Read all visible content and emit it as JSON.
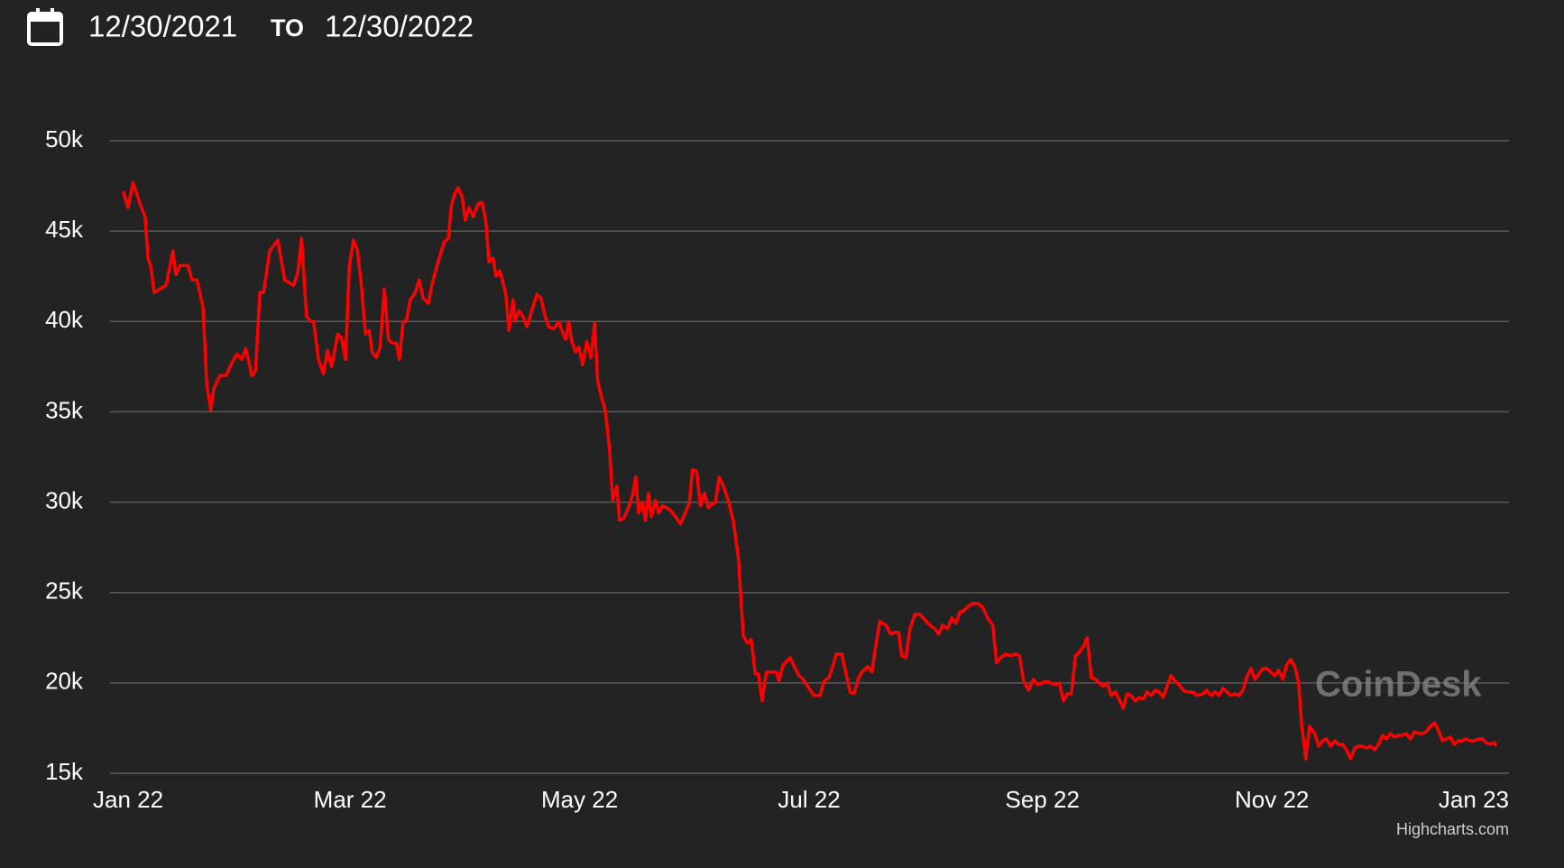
{
  "header": {
    "date_from": "12/30/2021",
    "to": "TO",
    "date_to": "12/30/2022"
  },
  "chart_data": {
    "type": "line",
    "watermark": "CoinDesk",
    "credits": "Highcharts.com",
    "xlim": [
      -4.8,
      367
    ],
    "ylim": [
      15000,
      50000
    ],
    "grid": true,
    "xticks": [
      {
        "value": 0,
        "label": "Jan 22"
      },
      {
        "value": 59,
        "label": "Mar 22"
      },
      {
        "value": 120,
        "label": "May 22"
      },
      {
        "value": 181,
        "label": "Jul 22"
      },
      {
        "value": 243,
        "label": "Sep 22"
      },
      {
        "value": 304,
        "label": "Nov 22"
      },
      {
        "value": 365,
        "label": "Jan 23"
      }
    ],
    "yticks": [
      {
        "value": 15000,
        "label": "15k"
      },
      {
        "value": 20000,
        "label": "20k"
      },
      {
        "value": 25000,
        "label": "25k"
      },
      {
        "value": 30000,
        "label": "30k"
      },
      {
        "value": 35000,
        "label": "35k"
      },
      {
        "value": 40000,
        "label": "40k"
      },
      {
        "value": 45000,
        "label": "45k"
      },
      {
        "value": 50000,
        "label": "50k"
      }
    ],
    "x": [
      -1.3,
      0,
      1.3,
      3.2,
      4.5,
      5.3,
      6.1,
      6.9,
      8.5,
      10.1,
      11.9,
      12.7,
      13.8,
      15.9,
      17.0,
      18.3,
      19.9,
      20.9,
      22.0,
      22.8,
      24.4,
      26.0,
      27.6,
      28.9,
      30.2,
      31.3,
      32.9,
      33.9,
      35.0,
      36.0,
      37.6,
      39.8,
      41.6,
      44.0,
      45.1,
      46.1,
      47.4,
      48.5,
      49.3,
      50.6,
      51.9,
      53.0,
      54.1,
      55.7,
      56.7,
      57.8,
      58.8,
      59.9,
      60.9,
      62.0,
      63.1,
      64.1,
      64.9,
      66.0,
      67.0,
      68.1,
      69.2,
      70.2,
      71.3,
      72.1,
      73.1,
      73.9,
      75.0,
      76.1,
      77.4,
      78.4,
      79.8,
      80.8,
      82.4,
      84.0,
      85.1,
      85.9,
      86.7,
      87.7,
      88.8,
      89.6,
      90.6,
      91.7,
      93.0,
      94.1,
      95.1,
      95.9,
      97.0,
      97.8,
      98.8,
      99.6,
      100.4,
      101.2,
      102.3,
      102.8,
      103.9,
      104.9,
      106.0,
      107.3,
      108.6,
      109.7,
      110.8,
      111.8,
      113.2,
      114.5,
      115.3,
      116.3,
      117.1,
      117.9,
      119.0,
      119.8,
      120.8,
      121.9,
      123.0,
      124.0,
      124.8,
      125.6,
      126.9,
      128.0,
      128.8,
      129.9,
      130.6,
      131.7,
      133.0,
      134.1,
      134.9,
      135.7,
      136.7,
      137.5,
      138.3,
      139.1,
      140.2,
      141.0,
      142.0,
      143.1,
      144.4,
      145.8,
      146.8,
      148.1,
      149.2,
      150.0,
      151.1,
      152.1,
      153.2,
      154.2,
      155.3,
      156.1,
      157.1,
      158.2,
      159.5,
      160.9,
      162.2,
      163.5,
      164.6,
      165.6,
      166.7,
      167.5,
      168.5,
      169.6,
      171.2,
      172.3,
      173.0,
      174.1,
      176.0,
      177.3,
      178.3,
      179.4,
      180.7,
      182.3,
      183.9,
      185.0,
      186.3,
      187.1,
      188.2,
      189.7,
      190.8,
      191.9,
      192.9,
      194.0,
      195.0,
      196.6,
      197.7,
      198.8,
      199.8,
      201.4,
      202.7,
      203.8,
      204.8,
      205.6,
      206.7,
      207.8,
      209.1,
      210.4,
      211.7,
      213.1,
      214.4,
      215.4,
      216.5,
      217.8,
      218.9,
      220.0,
      221.0,
      222.1,
      223.1,
      224.5,
      225.8,
      227.1,
      228.4,
      229.8,
      230.8,
      231.9,
      233.2,
      234.5,
      235.9,
      236.9,
      238.0,
      239.3,
      240.6,
      241.7,
      243.0,
      244.1,
      245.1,
      246.5,
      247.5,
      248.6,
      249.6,
      250.7,
      251.8,
      252.8,
      253.9,
      254.9,
      256.0,
      257.1,
      258.1,
      259.2,
      260.2,
      261.3,
      262.4,
      263.4,
      264.5,
      265.5,
      266.6,
      267.7,
      268.7,
      269.8,
      270.8,
      271.9,
      273.0,
      274.0,
      275.1,
      276.1,
      277.2,
      278.3,
      279.3,
      280.4,
      281.4,
      283.0,
      284.1,
      285.7,
      286.7,
      287.8,
      288.9,
      289.9,
      291.0,
      292.0,
      293.1,
      294.2,
      295.2,
      296.3,
      297.3,
      298.4,
      299.5,
      300.5,
      301.6,
      302.6,
      303.7,
      304.8,
      305.8,
      306.9,
      307.9,
      309.0,
      310.1,
      311.1,
      311.9,
      313.0,
      314.0,
      315.4,
      316.4,
      317.5,
      318.5,
      319.6,
      320.7,
      321.7,
      322.8,
      323.8,
      324.9,
      326.0,
      327.0,
      328.1,
      329.1,
      330.2,
      331.3,
      332.3,
      333.4,
      334.4,
      335.5,
      336.6,
      337.6,
      338.7,
      339.7,
      340.8,
      341.9,
      342.9,
      344.0,
      345.0,
      346.1,
      347.2,
      348.2,
      349.3,
      350.3,
      351.4,
      352.5,
      353.5,
      354.6,
      355.6,
      356.7,
      357.8,
      358.8,
      359.9,
      360.9,
      362.0,
      363.1,
      363.6
    ],
    "series": [
      {
        "color": "#ff0000",
        "values": [
          47200,
          46300,
          47700,
          46500,
          45800,
          43500,
          43000,
          41600,
          41800,
          42000,
          43900,
          42600,
          43100,
          43100,
          42300,
          42300,
          40800,
          36500,
          35100,
          36300,
          37000,
          37000,
          37700,
          38200,
          37900,
          38500,
          37000,
          37300,
          41600,
          41600,
          43900,
          44500,
          42300,
          42000,
          42700,
          44600,
          40300,
          40000,
          40000,
          37900,
          37100,
          38400,
          37500,
          39300,
          39100,
          37900,
          43100,
          44500,
          44000,
          42000,
          39300,
          39500,
          38300,
          38000,
          38600,
          41800,
          39000,
          38800,
          38800,
          37900,
          40000,
          40000,
          41200,
          41500,
          42300,
          41300,
          41000,
          42100,
          43300,
          44400,
          44600,
          46400,
          47000,
          47400,
          46900,
          45600,
          46300,
          45800,
          46500,
          46600,
          45500,
          43300,
          43500,
          42500,
          42800,
          42200,
          41500,
          39500,
          41200,
          40000,
          40600,
          40300,
          39700,
          40600,
          41500,
          41300,
          40300,
          39700,
          39600,
          40000,
          39500,
          39000,
          40000,
          38900,
          38300,
          38600,
          37600,
          38900,
          38000,
          39900,
          36700,
          36000,
          35000,
          32800,
          30100,
          30900,
          29000,
          29100,
          29700,
          30400,
          31400,
          29400,
          30000,
          29000,
          30500,
          29200,
          30100,
          29400,
          29800,
          29700,
          29500,
          29100,
          28800,
          29400,
          30000,
          31800,
          31700,
          29800,
          30500,
          29700,
          29900,
          30000,
          31400,
          30900,
          30100,
          28900,
          26900,
          22600,
          22200,
          22400,
          20500,
          20500,
          19000,
          20600,
          20600,
          20600,
          20100,
          21000,
          21400,
          20800,
          20400,
          20200,
          19800,
          19300,
          19300,
          20100,
          20300,
          20800,
          21600,
          21600,
          20500,
          19500,
          19400,
          20200,
          20600,
          20900,
          20600,
          22200,
          23400,
          23200,
          22700,
          22800,
          22800,
          21500,
          21400,
          23000,
          23800,
          23800,
          23500,
          23200,
          23000,
          22700,
          23200,
          23000,
          23600,
          23300,
          23900,
          24000,
          24200,
          24400,
          24400,
          24200,
          23600,
          23200,
          21100,
          21400,
          21600,
          21500,
          21600,
          21500,
          20100,
          19600,
          20200,
          19900,
          20000,
          20100,
          20000,
          19900,
          20000,
          19000,
          19400,
          19400,
          21500,
          21700,
          22000,
          22500,
          20300,
          20200,
          20000,
          19800,
          20000,
          19300,
          19500,
          19100,
          18600,
          19400,
          19300,
          19000,
          19200,
          19100,
          19500,
          19300,
          19600,
          19500,
          19200,
          19800,
          20400,
          20100,
          19900,
          19600,
          19500,
          19500,
          19300,
          19400,
          19600,
          19300,
          19500,
          19300,
          19700,
          19500,
          19300,
          19400,
          19300,
          19600,
          20300,
          20800,
          20200,
          20500,
          20800,
          20800,
          20600,
          20400,
          20700,
          20200,
          21000,
          21300,
          20900,
          20000,
          17700,
          15800,
          17600,
          17200,
          16500,
          16800,
          16900,
          16500,
          16800,
          16600,
          16600,
          16300,
          15800,
          16400,
          16500,
          16500,
          16400,
          16500,
          16300,
          16600,
          17100,
          16900,
          17200,
          17000,
          17100,
          17100,
          17200,
          16900,
          17300,
          17200,
          17200,
          17300,
          17600,
          17800,
          17400,
          16800,
          16900,
          17000,
          16600,
          16800,
          16800,
          16900,
          16800,
          16800,
          16900,
          16900,
          16700,
          16600,
          16700,
          16500
        ]
      }
    ]
  }
}
